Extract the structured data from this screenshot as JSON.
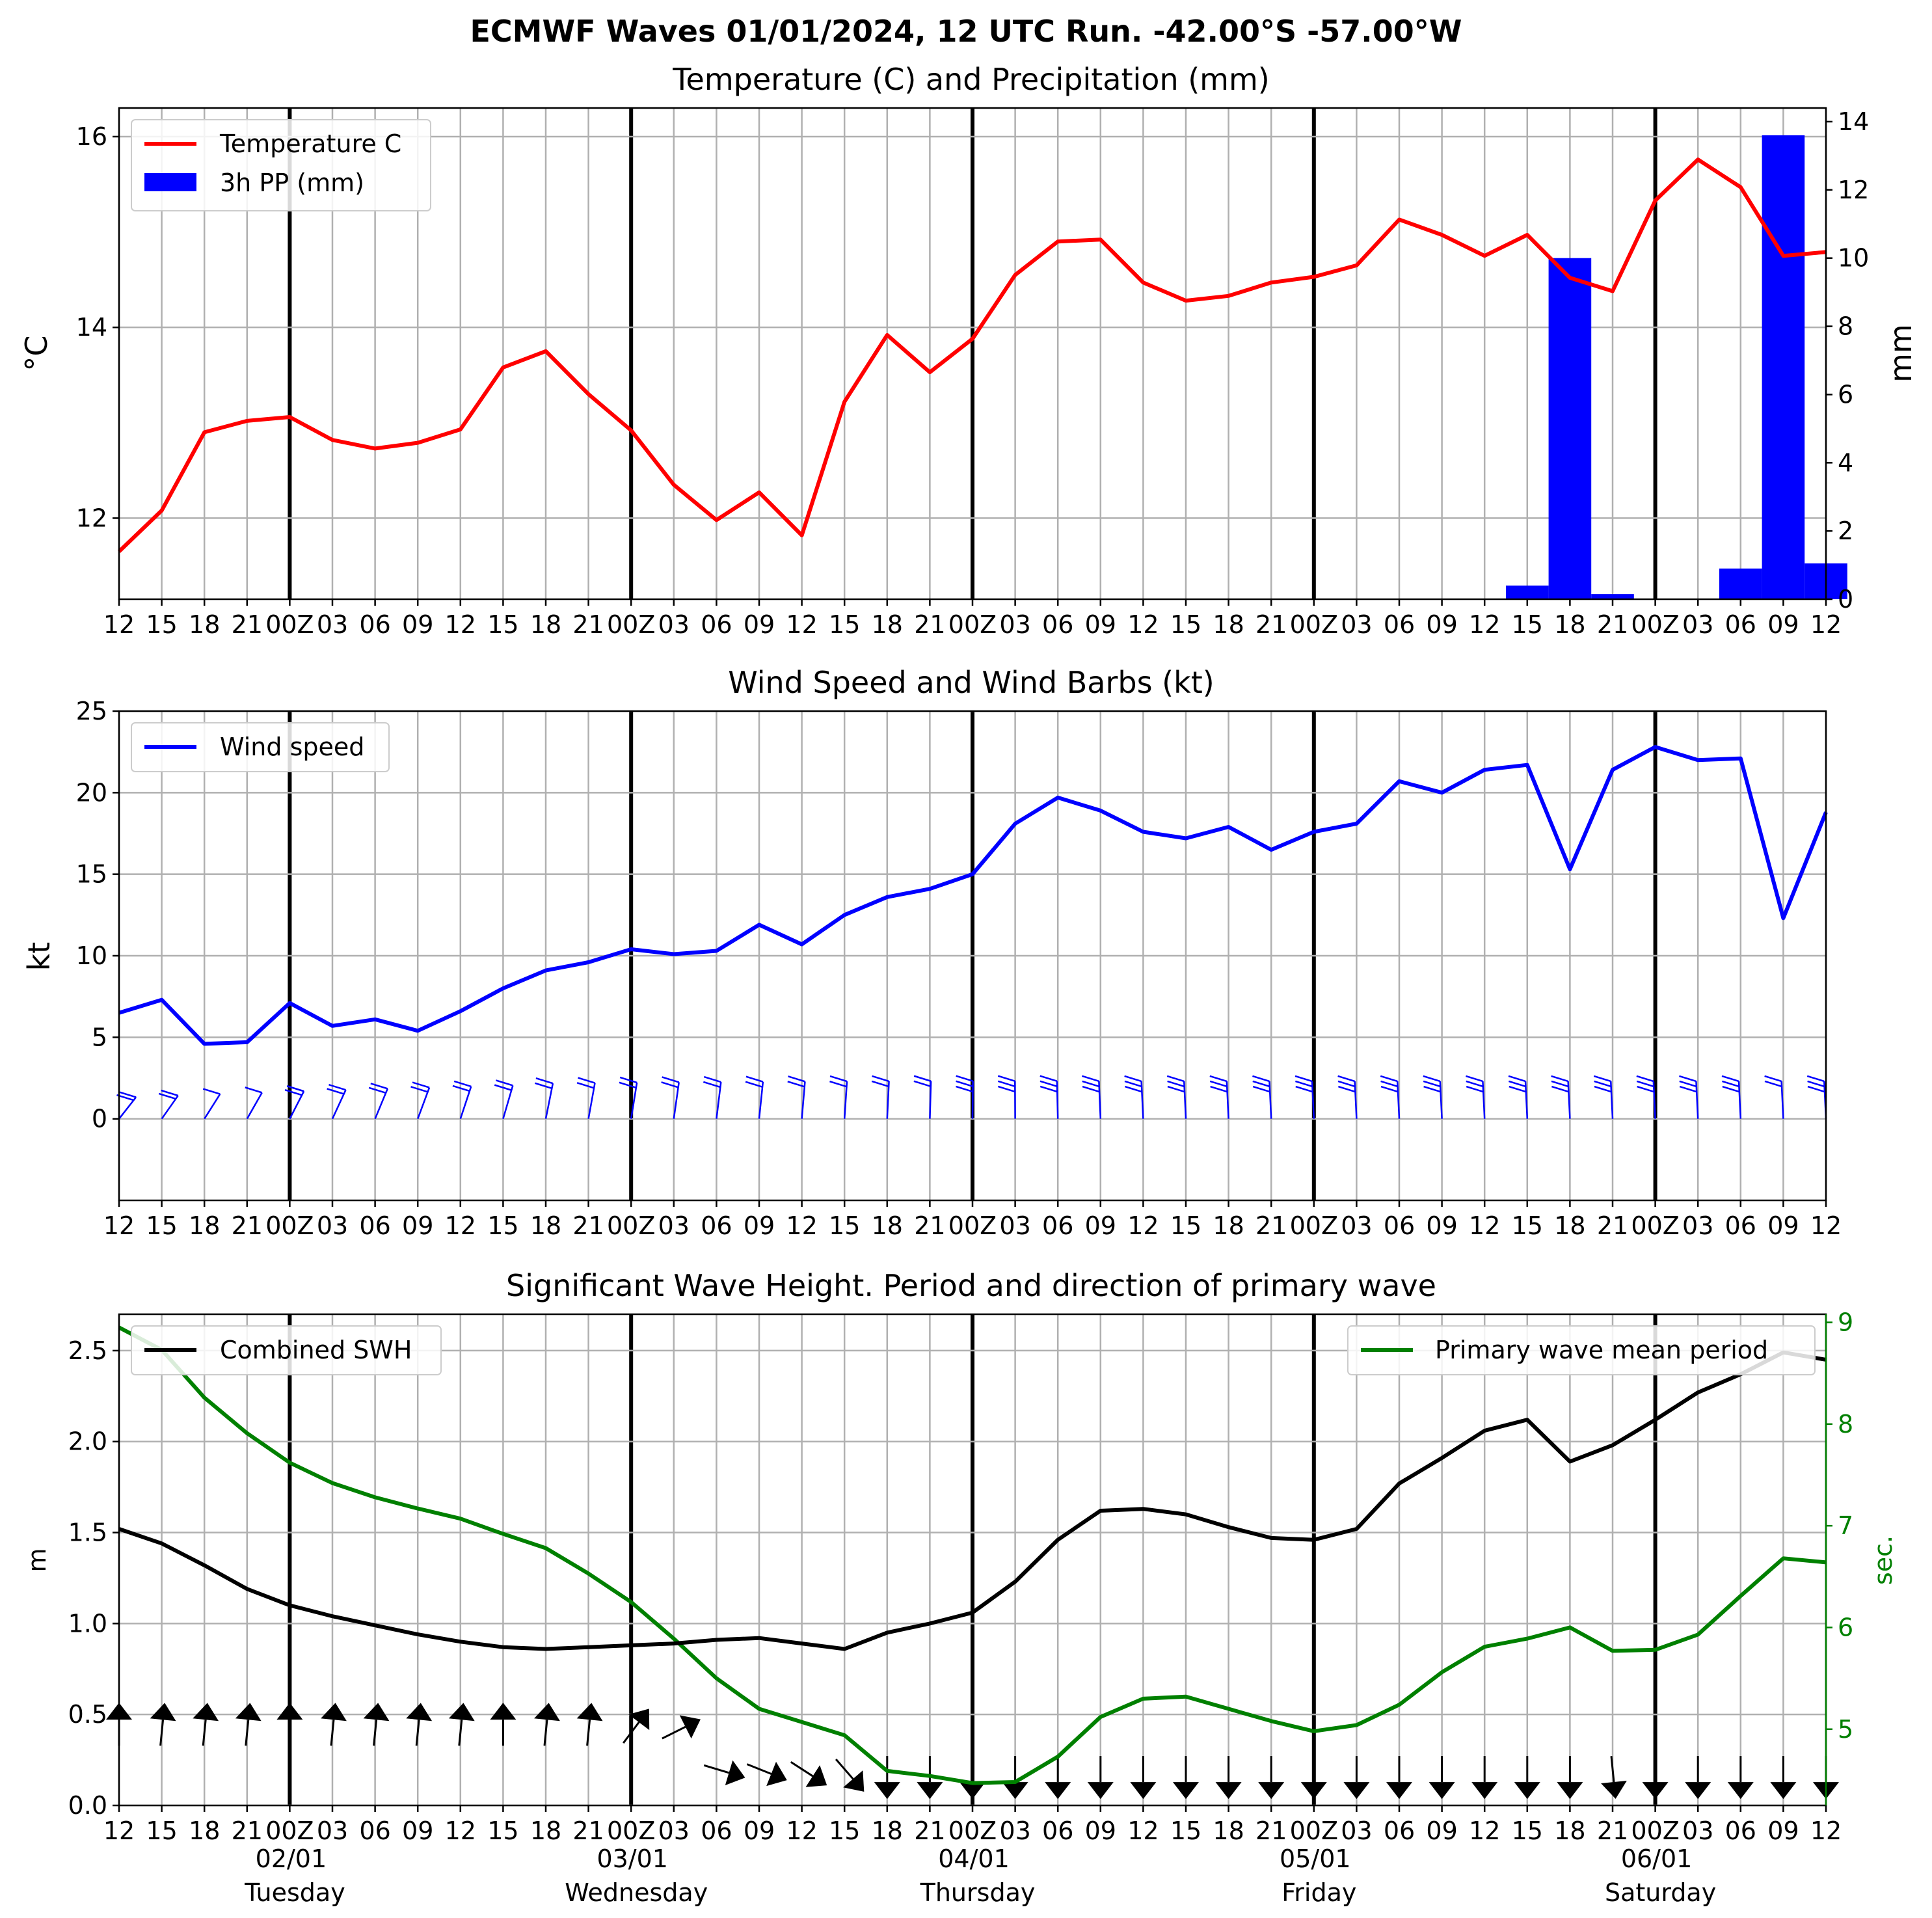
{
  "figure_title": "ECMWF Waves 01/01/2024, 12 UTC Run. -42.00°S -57.00°W",
  "x_tick_labels": [
    "12",
    "15",
    "18",
    "21",
    "00Z",
    "03",
    "06",
    "09",
    "12",
    "15",
    "18",
    "21",
    "00Z",
    "03",
    "06",
    "09",
    "12",
    "15",
    "18",
    "21",
    "00Z",
    "03",
    "06",
    "09",
    "12",
    "15",
    "18",
    "21",
    "00Z",
    "03",
    "06",
    "09",
    "12",
    "15",
    "18",
    "21",
    "00Z",
    "03",
    "06",
    "09",
    "12"
  ],
  "day_labels": [
    {
      "date": "02/01",
      "day": "Tuesday"
    },
    {
      "date": "03/01",
      "day": "Wednesday"
    },
    {
      "date": "04/01",
      "day": "Thursday"
    },
    {
      "date": "05/01",
      "day": "Friday"
    },
    {
      "date": "06/01",
      "day": "Saturday"
    }
  ],
  "colors": {
    "temperature": "#ff0000",
    "precipitation": "#0000ff",
    "wind": "#0000ff",
    "swh": "#000000",
    "period": "#008000",
    "grid": "#b0b0b0"
  },
  "chart_data": [
    {
      "type": "line",
      "title": "Temperature (C) and Precipitation (mm)",
      "ylabel": "°C",
      "y2label": "mm",
      "ylim": [
        11.15,
        16.3
      ],
      "y2lim": [
        0,
        14.4
      ],
      "yticks": [
        12,
        14,
        16
      ],
      "y2ticks": [
        0,
        2,
        4,
        6,
        8,
        10,
        12,
        14
      ],
      "grid": true,
      "legend_position": "top-left",
      "series": [
        {
          "name": "Temperature C",
          "axis": "left",
          "type": "line",
          "values": [
            11.65,
            12.08,
            12.9,
            13.02,
            13.06,
            12.82,
            12.73,
            12.79,
            12.93,
            13.58,
            13.75,
            13.3,
            12.92,
            12.35,
            11.98,
            12.27,
            11.82,
            13.22,
            13.92,
            13.53,
            13.88,
            14.55,
            14.9,
            14.92,
            14.47,
            14.28,
            14.33,
            14.47,
            14.53,
            14.65,
            15.13,
            14.97,
            14.75,
            14.97,
            14.52,
            14.38,
            15.33,
            15.76,
            15.47,
            14.75,
            14.79
          ]
        },
        {
          "name": "3h PP (mm)",
          "axis": "right",
          "type": "bar",
          "values": [
            0,
            0,
            0,
            0,
            0,
            0,
            0,
            0,
            0,
            0,
            0,
            0,
            0,
            0,
            0,
            0,
            0,
            0,
            0,
            0,
            0,
            0,
            0,
            0,
            0,
            0,
            0,
            0,
            0,
            0,
            0,
            0,
            0,
            0.4,
            10.0,
            0.15,
            0,
            0,
            0.9,
            13.6,
            1.05
          ]
        }
      ]
    },
    {
      "type": "line",
      "title": "Wind Speed and Wind Barbs (kt)",
      "ylabel": "kt",
      "ylim": [
        -5,
        25
      ],
      "yticks": [
        0,
        5,
        10,
        15,
        20,
        25
      ],
      "grid": true,
      "legend_position": "top-left",
      "barb_baseline": 0,
      "series": [
        {
          "name": "Wind speed",
          "values": [
            6.5,
            7.3,
            4.6,
            4.7,
            7.1,
            5.7,
            6.1,
            5.4,
            6.6,
            8.0,
            9.1,
            9.6,
            10.4,
            10.1,
            10.3,
            11.9,
            10.7,
            12.5,
            13.6,
            14.1,
            15.0,
            18.1,
            19.7,
            18.9,
            17.6,
            17.2,
            17.9,
            16.5,
            17.6,
            18.1,
            20.7,
            20.0,
            21.4,
            21.7,
            15.3,
            21.4,
            22.8,
            22.0,
            22.1,
            12.3,
            18.8
          ]
        }
      ]
    },
    {
      "type": "line",
      "title": "Significant Wave Height. Period and direction of primary wave",
      "ylabel": "m",
      "y2label": "sec.",
      "ylim": [
        0,
        2.7
      ],
      "y2lim": [
        4.25,
        9.08
      ],
      "yticks": [
        0.0,
        0.5,
        1.0,
        1.5,
        2.0,
        2.5
      ],
      "y2ticks": [
        5,
        6,
        7,
        8,
        9
      ],
      "grid": true,
      "legend_positions": [
        "top-left",
        "top-right"
      ],
      "series": [
        {
          "name": "Combined SWH",
          "axis": "left",
          "values": [
            1.52,
            1.44,
            1.32,
            1.19,
            1.1,
            1.04,
            0.99,
            0.94,
            0.9,
            0.87,
            0.86,
            0.87,
            0.88,
            0.89,
            0.91,
            0.92,
            0.89,
            0.86,
            0.95,
            1.0,
            1.06,
            1.23,
            1.46,
            1.62,
            1.63,
            1.6,
            1.53,
            1.47,
            1.46,
            1.52,
            1.77,
            1.91,
            2.06,
            2.12,
            1.89,
            1.98,
            2.12,
            2.27,
            2.37,
            2.49,
            2.45
          ]
        },
        {
          "name": "Primary wave mean period",
          "axis": "right",
          "values": [
            8.95,
            8.73,
            8.26,
            7.91,
            7.62,
            7.42,
            7.28,
            7.17,
            7.07,
            6.92,
            6.78,
            6.53,
            6.25,
            5.89,
            5.5,
            5.2,
            5.07,
            4.94,
            4.59,
            4.54,
            4.47,
            4.48,
            4.73,
            5.12,
            5.3,
            5.32,
            5.2,
            5.08,
            4.98,
            5.04,
            5.24,
            5.56,
            5.81,
            5.89,
            6.0,
            5.77,
            5.78,
            5.93,
            6.31,
            6.68,
            6.64
          ]
        }
      ],
      "wave_direction_arrows_dx": [
        0,
        0.1,
        0.1,
        0.1,
        0,
        0.1,
        0.1,
        0.1,
        0.1,
        0,
        0.1,
        0.1,
        0.6,
        0.9,
        1,
        1,
        0.85,
        0.65,
        0,
        0,
        0,
        0,
        0,
        0,
        0,
        0,
        0,
        0,
        0,
        0,
        0,
        0,
        0,
        0,
        0,
        0.1,
        0,
        0,
        0,
        0,
        0
      ],
      "wave_direction_arrows_dy": [
        1,
        1,
        1,
        1,
        1,
        1,
        1,
        1,
        1,
        1,
        1,
        1,
        0.8,
        0.45,
        -0.3,
        -0.4,
        -0.55,
        -0.75,
        -1,
        -1,
        -1,
        -1,
        -1,
        -1,
        -1,
        -1,
        -1,
        -1,
        -1,
        -1,
        -1,
        -1,
        -1,
        -1,
        -1,
        -1,
        -1,
        -1,
        -1,
        -1,
        -1
      ],
      "wave_direction_arrow_baseline": 0.2
    }
  ]
}
